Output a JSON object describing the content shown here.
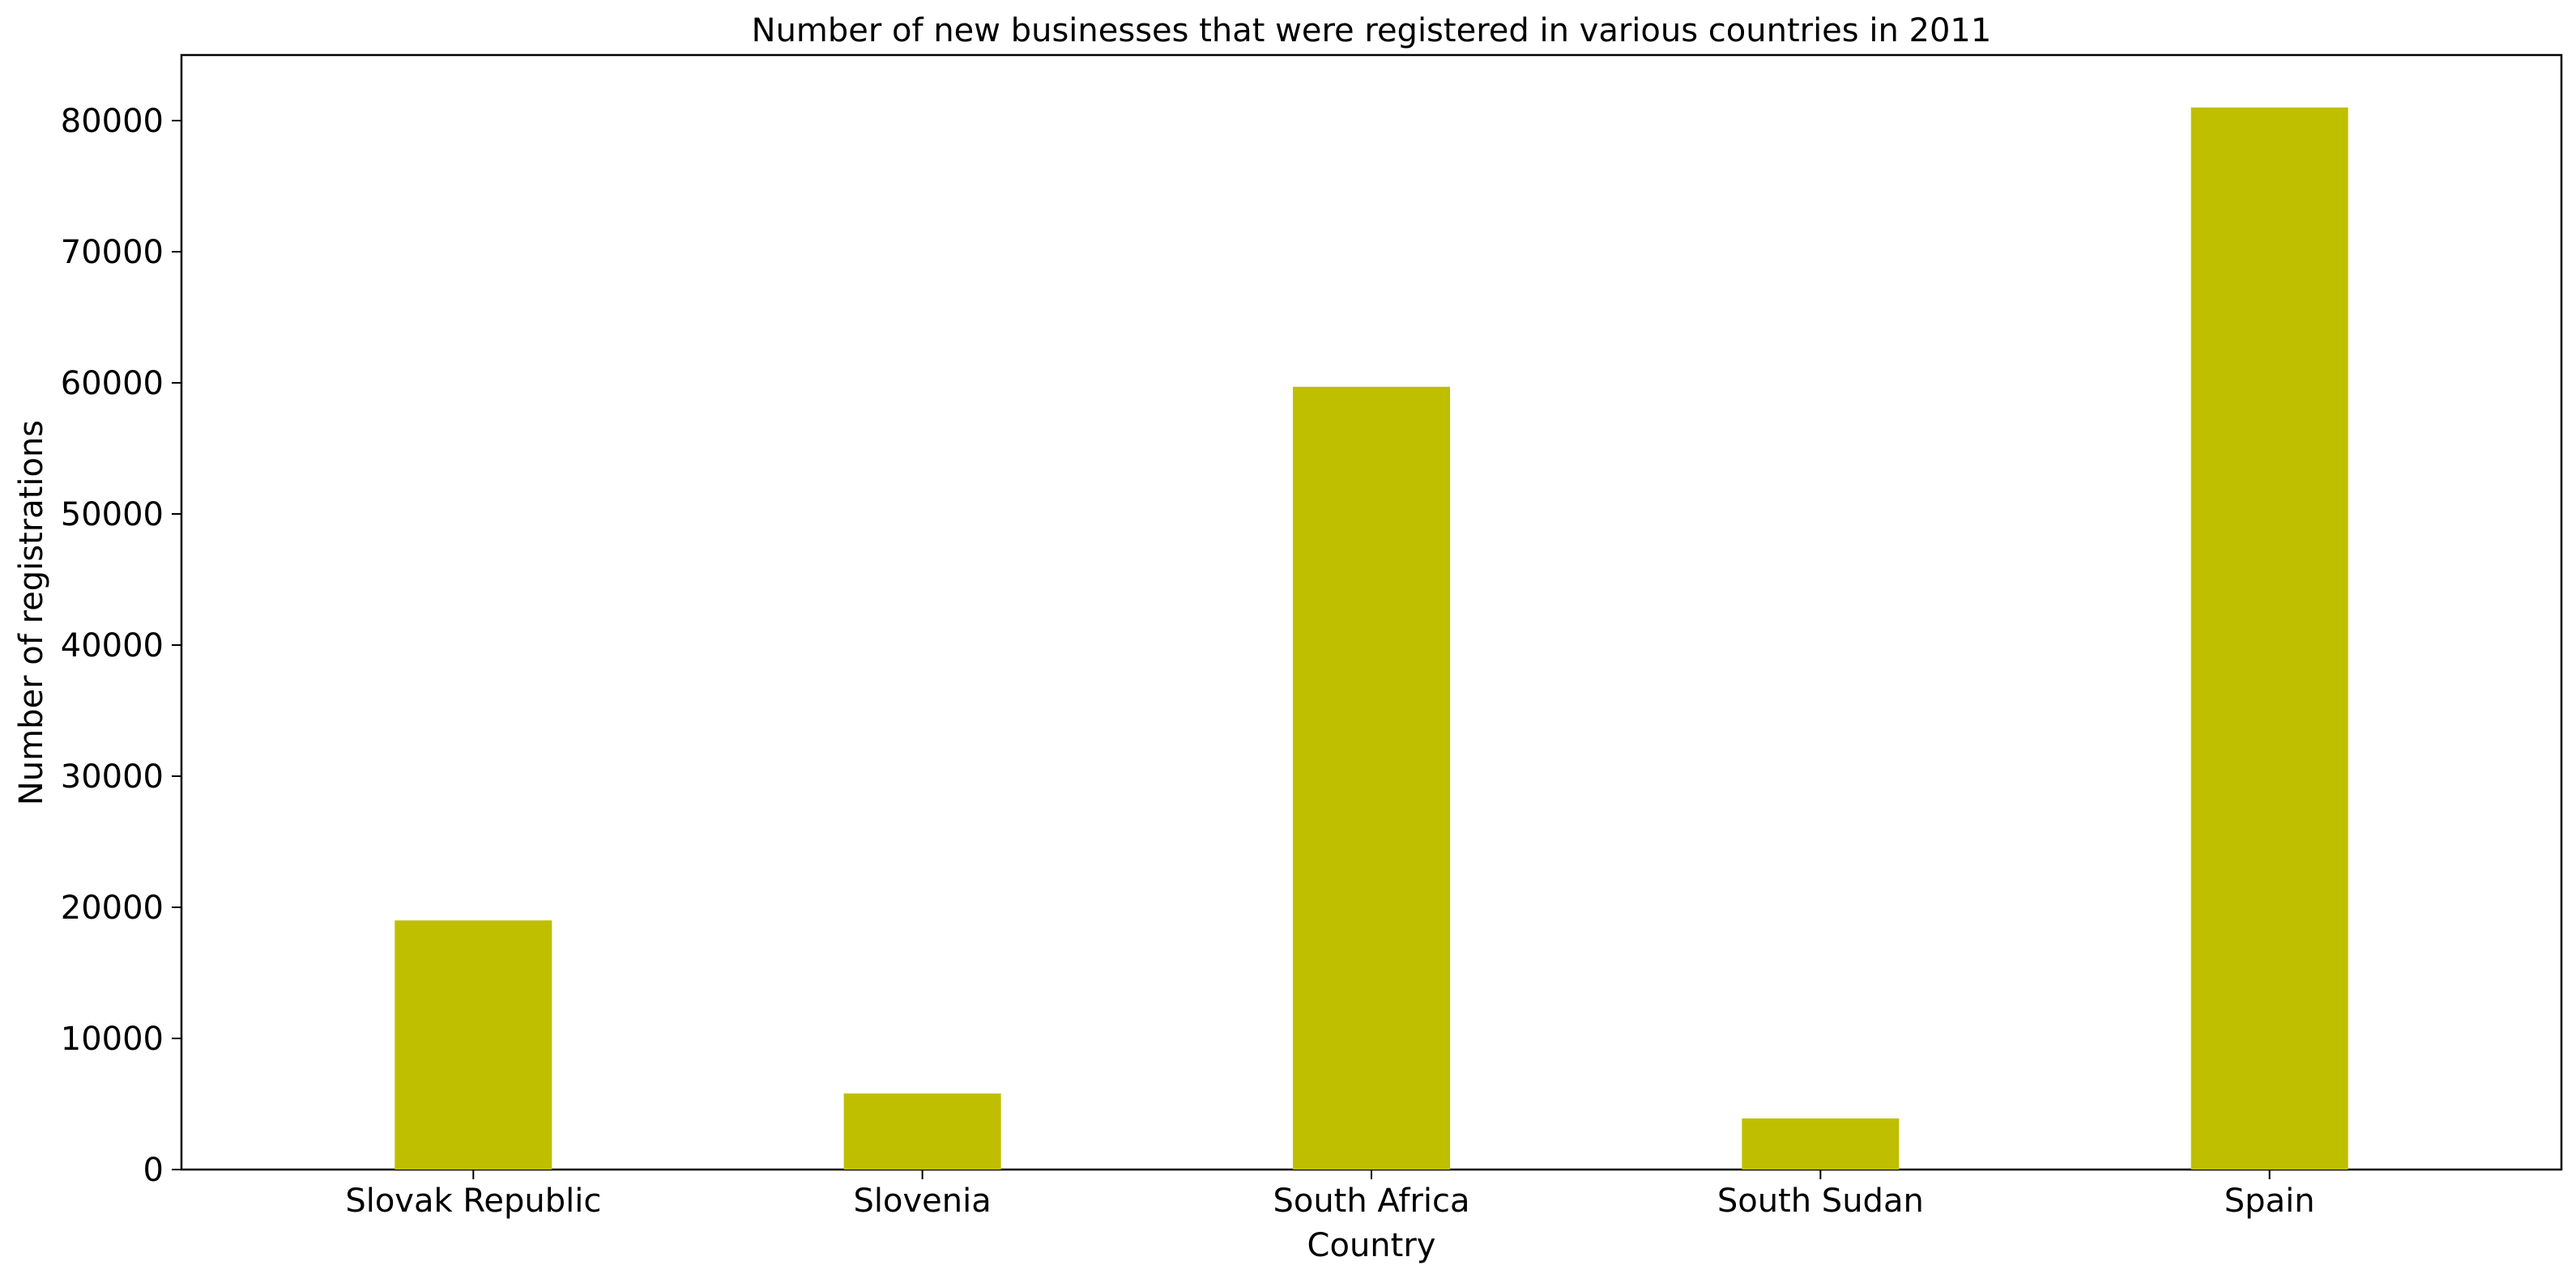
{
  "chart_data": {
    "type": "bar",
    "title": "Number of new businesses that were registered in various countries in 2011",
    "xlabel": "Country",
    "ylabel": "Number of registrations",
    "categories": [
      "Slovak Republic",
      "Slovenia",
      "South Africa",
      "South Sudan",
      "Spain"
    ],
    "values": [
      19000,
      5800,
      59700,
      3900,
      81000
    ],
    "ylim": [
      0,
      85000
    ],
    "yticks": [
      0,
      10000,
      20000,
      30000,
      40000,
      50000,
      60000,
      70000,
      80000
    ],
    "grid": false,
    "legend": "none",
    "bar_color": "#bfbf00"
  }
}
